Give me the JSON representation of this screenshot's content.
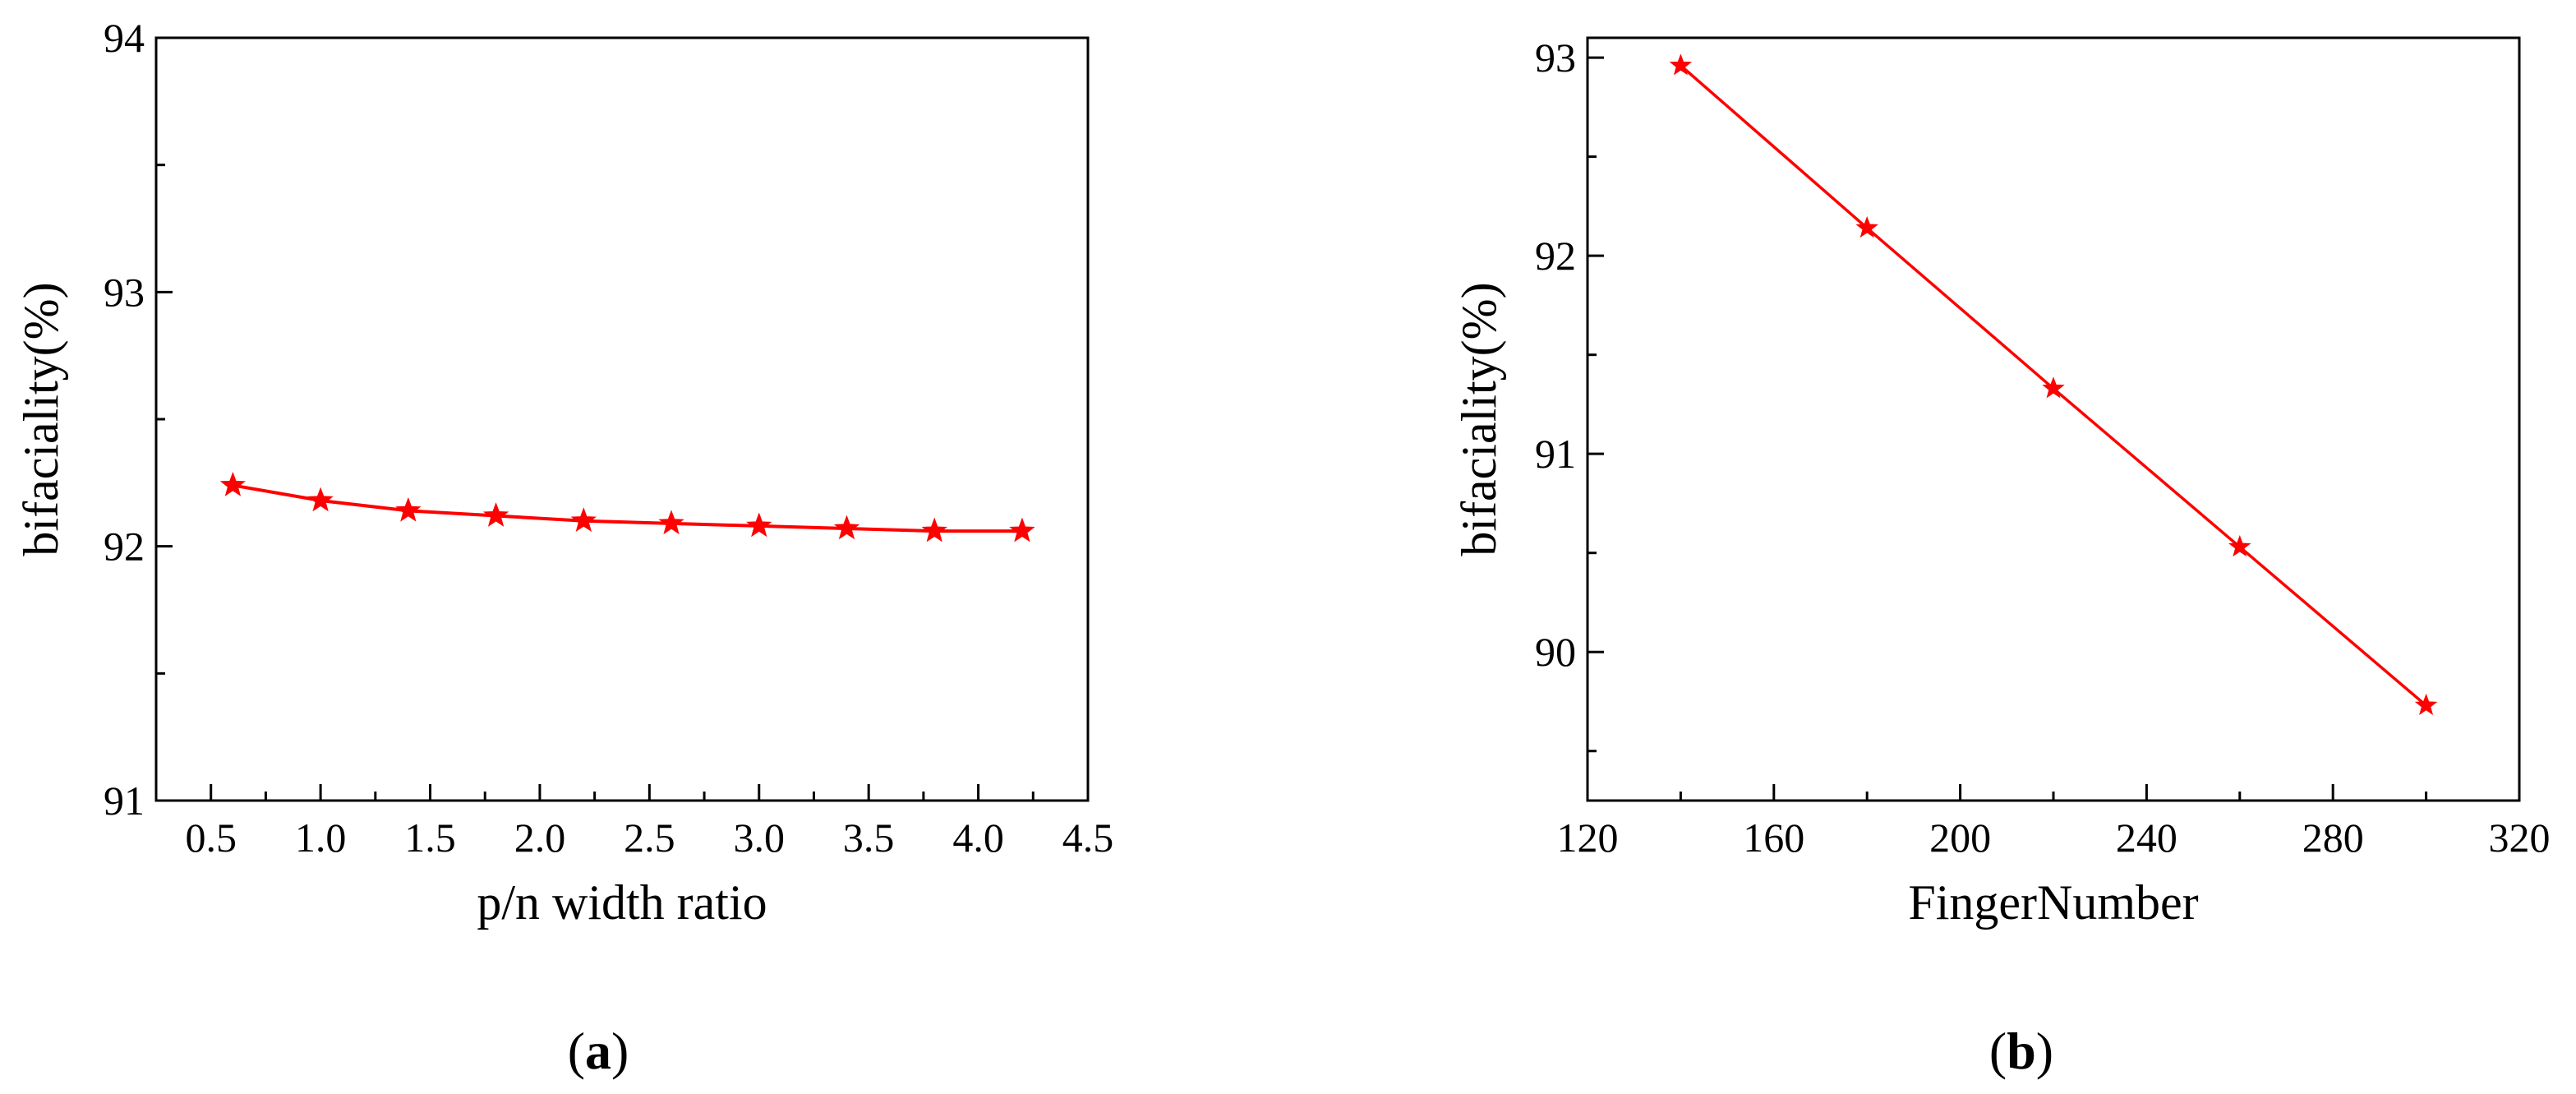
{
  "chart_data": [
    {
      "type": "line",
      "panel_label": "a",
      "xlabel": "p/n width ratio",
      "ylabel": "bifaciality(%)",
      "xlim": [
        0.25,
        4.5
      ],
      "ylim": [
        91,
        94
      ],
      "x_ticks": [
        0.5,
        1.0,
        1.5,
        2.0,
        2.5,
        3.0,
        3.5,
        4.0,
        4.5
      ],
      "x_tick_labels": [
        "0.5",
        "1.0",
        "1.5",
        "2.0",
        "2.5",
        "3.0",
        "3.5",
        "4.0",
        "4.5"
      ],
      "y_ticks": [
        91,
        92,
        93,
        94
      ],
      "y_tick_labels": [
        "91",
        "92",
        "93",
        "94"
      ],
      "grid": false,
      "marker": "star",
      "series": [
        {
          "color": "#ff0000",
          "x": [
            0.6,
            1.0,
            1.4,
            1.8,
            2.2,
            2.6,
            3.0,
            3.4,
            3.8,
            4.2
          ],
          "y": [
            92.24,
            92.18,
            92.14,
            92.12,
            92.1,
            92.09,
            92.08,
            92.07,
            92.06,
            92.06
          ]
        }
      ]
    },
    {
      "type": "line",
      "panel_label": "b",
      "xlabel": "FingerNumber",
      "ylabel": "bifaciality(%)",
      "xlim": [
        120,
        320
      ],
      "ylim": [
        89.25,
        93.1
      ],
      "x_ticks": [
        120,
        160,
        200,
        240,
        280,
        320
      ],
      "x_tick_labels": [
        "120",
        "160",
        "200",
        "240",
        "280",
        "320"
      ],
      "y_ticks": [
        90,
        91,
        92,
        93
      ],
      "y_tick_labels": [
        "90",
        "91",
        "92",
        "93"
      ],
      "grid": false,
      "marker": "star",
      "series": [
        {
          "color": "#ff0000",
          "x": [
            140,
            180,
            220,
            260,
            300
          ],
          "y": [
            92.96,
            92.14,
            91.33,
            90.53,
            89.73
          ]
        }
      ]
    }
  ]
}
